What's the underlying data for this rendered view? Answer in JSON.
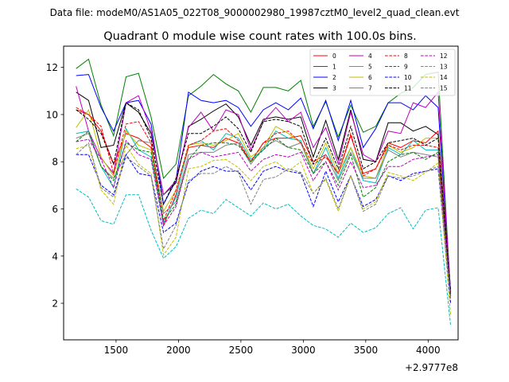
{
  "figure": {
    "suptitle": "Data file: modeM0/AS1A05_022T08_9000002980_19987cztM0_level2_quad_clean.evt"
  },
  "chart_data": {
    "type": "line",
    "title": "Quadrant 0 module wise count rates with 100.0s bins.",
    "xlabel": "",
    "ylabel": "",
    "x_offset_label": "+2.9777e8",
    "xlim": [
      1080,
      4240
    ],
    "ylim": [
      0.45,
      12.9
    ],
    "xticks": [
      1500,
      2000,
      2500,
      3000,
      3500,
      4000
    ],
    "yticks": [
      2,
      4,
      6,
      8,
      10,
      12
    ],
    "legend_position": "top-right",
    "x": [
      1180,
      1280,
      1380,
      1480,
      1580,
      1680,
      1780,
      1880,
      1980,
      2080,
      2180,
      2280,
      2380,
      2480,
      2580,
      2680,
      2780,
      2880,
      2980,
      3080,
      3180,
      3280,
      3380,
      3480,
      3580,
      3680,
      3780,
      3880,
      3980,
      4080,
      4180
    ],
    "series": [
      {
        "name": "0",
        "color": "#ff0000",
        "dash": "solid",
        "values": [
          10.2,
          10.0,
          9.3,
          7.9,
          9.2,
          9.0,
          8.6,
          5.3,
          6.6,
          8.6,
          8.7,
          8.6,
          9.0,
          8.8,
          8.0,
          8.8,
          9.0,
          9.0,
          9.1,
          8.0,
          8.3,
          7.5,
          9.1,
          7.5,
          7.7,
          8.8,
          8.6,
          8.9,
          8.8,
          9.3,
          2.5
        ]
      },
      {
        "name": "1",
        "color": "#008000",
        "dash": "solid",
        "values": [
          11.95,
          12.35,
          10.4,
          9.1,
          11.6,
          11.75,
          9.9,
          7.3,
          7.9,
          10.8,
          11.2,
          11.7,
          11.3,
          11.0,
          10.1,
          11.15,
          11.15,
          11.0,
          11.45,
          9.5,
          10.55,
          9.05,
          10.4,
          9.25,
          9.5,
          10.5,
          10.9,
          11.15,
          11.7,
          11.8,
          2.3
        ]
      },
      {
        "name": "2",
        "color": "#0000ff",
        "dash": "solid",
        "values": [
          11.65,
          11.7,
          10.3,
          9.3,
          10.5,
          10.6,
          9.6,
          6.2,
          7.2,
          10.95,
          10.6,
          10.5,
          10.6,
          10.3,
          9.5,
          10.2,
          10.5,
          10.2,
          10.7,
          9.4,
          10.6,
          8.9,
          10.6,
          8.6,
          9.4,
          10.5,
          10.5,
          10.2,
          10.8,
          10.3,
          2.5
        ]
      },
      {
        "name": "3",
        "color": "#000000",
        "dash": "solid",
        "values": [
          10.95,
          10.6,
          8.6,
          8.7,
          10.5,
          10.1,
          9.2,
          6.6,
          7.1,
          9.5,
          9.8,
          10.15,
          10.45,
          9.9,
          8.7,
          9.8,
          9.9,
          9.8,
          9.9,
          8.2,
          9.75,
          8.1,
          10.2,
          8.1,
          8.0,
          9.65,
          9.65,
          9.3,
          9.5,
          9.15,
          2.5
        ]
      },
      {
        "name": "4",
        "color": "#bf00bf",
        "dash": "solid",
        "values": [
          11.2,
          9.3,
          8.15,
          7.5,
          10.5,
          10.8,
          9.3,
          6.6,
          7.2,
          9.45,
          10.1,
          9.3,
          10.2,
          10.0,
          8.5,
          9.7,
          10.3,
          9.7,
          10.1,
          8.6,
          9.45,
          7.9,
          10.1,
          8.3,
          8.0,
          9.3,
          9.2,
          10.5,
          10.3,
          10.95,
          2.4
        ]
      },
      {
        "name": "5",
        "color": "#00bfbf",
        "dash": "solid",
        "values": [
          9.2,
          9.3,
          7.8,
          6.9,
          9.4,
          8.5,
          8.2,
          5.4,
          6.5,
          8.7,
          8.9,
          8.5,
          9.2,
          9.0,
          8.1,
          8.5,
          9.3,
          9.0,
          8.9,
          7.5,
          8.6,
          7.3,
          8.6,
          7.2,
          7.1,
          8.6,
          8.3,
          8.9,
          8.5,
          8.5,
          2.4
        ]
      },
      {
        "name": "6",
        "color": "#bfbf00",
        "dash": "solid",
        "values": [
          9.45,
          10.2,
          8.2,
          7.4,
          9.3,
          8.7,
          8.5,
          5.9,
          6.8,
          8.7,
          8.8,
          8.7,
          8.9,
          9.2,
          8.2,
          8.6,
          9.5,
          9.2,
          8.8,
          7.7,
          8.8,
          7.5,
          8.6,
          7.4,
          7.3,
          8.7,
          8.4,
          8.6,
          9.0,
          9.0,
          2.3
        ]
      },
      {
        "name": "7",
        "color": "#808080",
        "dash": "solid",
        "values": [
          9.0,
          9.2,
          7.8,
          7.3,
          8.3,
          8.9,
          8.8,
          5.8,
          6.3,
          8.3,
          8.4,
          8.4,
          8.7,
          8.8,
          7.9,
          8.6,
          8.9,
          8.6,
          8.8,
          7.5,
          8.3,
          7.2,
          8.4,
          7.3,
          7.3,
          8.5,
          8.2,
          8.4,
          8.3,
          8.2,
          2.3
        ]
      },
      {
        "name": "8",
        "color": "#ff0000",
        "dash": "dashed",
        "values": [
          10.3,
          10.0,
          9.5,
          7.5,
          9.6,
          9.7,
          8.8,
          5.5,
          6.8,
          8.7,
          8.9,
          9.3,
          9.4,
          8.9,
          8.0,
          8.8,
          9.2,
          9.3,
          8.8,
          7.9,
          8.2,
          7.5,
          9.2,
          7.4,
          7.7,
          8.7,
          8.5,
          8.7,
          8.7,
          8.6,
          2.4
        ]
      },
      {
        "name": "9",
        "color": "#008000",
        "dash": "dashed",
        "values": [
          8.85,
          9.3,
          7.8,
          7.2,
          8.8,
          8.5,
          8.4,
          5.5,
          6.2,
          8.1,
          8.7,
          8.8,
          8.8,
          8.7,
          8.0,
          8.5,
          9.0,
          8.6,
          8.5,
          7.5,
          8.0,
          7.0,
          8.3,
          6.5,
          6.9,
          8.0,
          8.3,
          8.4,
          8.1,
          8.4,
          2.3
        ]
      },
      {
        "name": "10",
        "color": "#0000ff",
        "dash": "dashed",
        "values": [
          8.3,
          8.3,
          7.0,
          6.6,
          8.3,
          7.5,
          7.4,
          5.0,
          5.4,
          7.1,
          7.6,
          7.8,
          7.6,
          7.6,
          6.8,
          7.6,
          7.8,
          7.6,
          7.5,
          6.1,
          7.6,
          6.3,
          7.4,
          6.1,
          6.4,
          7.4,
          7.2,
          7.5,
          7.6,
          7.7,
          2.0
        ]
      },
      {
        "name": "11",
        "color": "#000000",
        "dash": "dashed",
        "values": [
          10.2,
          9.8,
          9.2,
          7.9,
          10.5,
          10.2,
          9.0,
          6.2,
          7.3,
          9.2,
          9.2,
          9.5,
          9.9,
          9.4,
          8.4,
          9.7,
          9.8,
          9.7,
          9.5,
          7.9,
          9.0,
          7.7,
          9.5,
          7.7,
          8.0,
          8.8,
          8.9,
          9.0,
          8.7,
          9.0,
          2.4
        ]
      },
      {
        "name": "12",
        "color": "#bf00bf",
        "dash": "dashed",
        "values": [
          8.85,
          8.95,
          8.1,
          6.9,
          8.9,
          8.3,
          8.1,
          5.3,
          6.1,
          8.1,
          8.4,
          8.2,
          8.3,
          8.4,
          7.6,
          8.1,
          8.3,
          8.2,
          8.4,
          7.2,
          8.0,
          6.8,
          8.0,
          6.9,
          7.0,
          7.8,
          7.8,
          8.1,
          8.2,
          8.3,
          2.2
        ]
      },
      {
        "name": "13",
        "color": "#00bfbf",
        "dash": "dashed",
        "values": [
          6.85,
          6.5,
          5.5,
          5.35,
          6.6,
          6.6,
          5.1,
          3.9,
          4.4,
          5.6,
          5.95,
          5.8,
          6.4,
          6.05,
          5.7,
          6.25,
          6.0,
          6.2,
          5.7,
          5.3,
          5.15,
          4.8,
          5.4,
          5.0,
          5.2,
          5.8,
          6.05,
          5.15,
          5.95,
          6.05,
          1.05
        ]
      },
      {
        "name": "14",
        "color": "#bfbf00",
        "dash": "dashed",
        "values": [
          8.55,
          8.7,
          6.8,
          6.2,
          8.7,
          7.9,
          7.5,
          4.05,
          4.8,
          7.7,
          7.8,
          8.05,
          8.1,
          7.75,
          7.2,
          7.8,
          8.0,
          7.6,
          8.0,
          6.65,
          7.25,
          5.9,
          7.4,
          6.0,
          6.3,
          7.55,
          7.4,
          7.2,
          7.55,
          7.95,
          1.5
        ]
      },
      {
        "name": "15",
        "color": "#808080",
        "dash": "dashed",
        "values": [
          8.3,
          8.8,
          6.9,
          6.5,
          8.2,
          7.8,
          7.4,
          4.3,
          5.3,
          7.2,
          7.5,
          7.5,
          7.8,
          7.55,
          6.2,
          7.25,
          7.35,
          7.7,
          7.55,
          6.65,
          7.3,
          6.0,
          7.4,
          5.9,
          6.2,
          7.4,
          7.3,
          7.4,
          7.6,
          7.8,
          2.2
        ]
      }
    ]
  }
}
